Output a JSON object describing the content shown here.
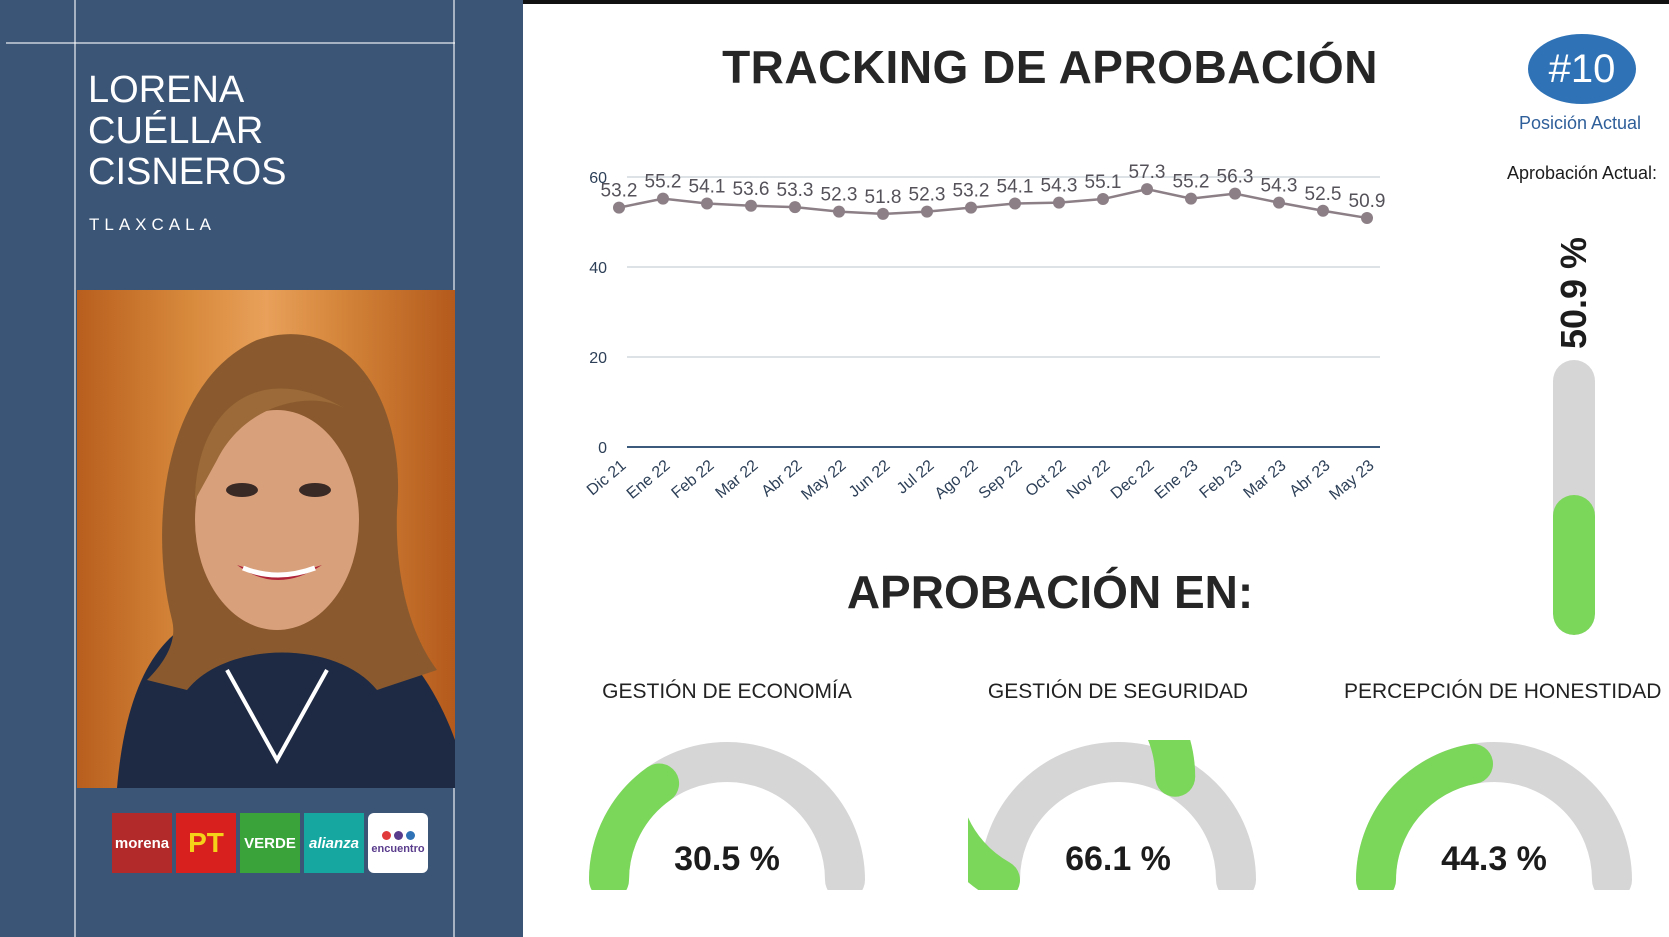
{
  "candidate": {
    "name_lines": [
      "LORENA",
      "CUÉLLAR",
      "CISNEROS"
    ],
    "state": "TLAXCALA"
  },
  "party_logos": [
    {
      "name": "morena",
      "text": "morena",
      "color": "#b22a2a"
    },
    {
      "name": "pt",
      "text": "PT",
      "color": "#d8201e"
    },
    {
      "name": "verde",
      "text": "VERDE",
      "color": "#3aa43a"
    },
    {
      "name": "alianza",
      "text": "alianza",
      "color": "#16a8a0"
    },
    {
      "name": "encuentro",
      "text": "encuentro",
      "color": "#ffffff"
    }
  ],
  "header": {
    "title": "TRACKING DE APROBACIÓN",
    "rank": "#10",
    "rank_label": "Posición Actual",
    "approval_label": "Aprobación Actual:",
    "approval_value": "50.9 %",
    "approval_fraction": 0.509
  },
  "section_title": "APROBACIÓN EN:",
  "gauges": [
    {
      "label": "GESTIÓN DE ECONOMÍA",
      "display": "30.5 %",
      "value": 30.5
    },
    {
      "label": "GESTIÓN DE SEGURIDAD",
      "display": "66.1 %",
      "value": 66.1
    },
    {
      "label": "PERCEPCIÓN DE HONESTIDAD",
      "display": "44.3 %",
      "value": 44.3
    }
  ],
  "colors": {
    "sidebar": "#3b5577",
    "accent_blue": "#2f73b6",
    "gauge_fill": "#7bd75a",
    "gauge_track": "#d6d6d6",
    "line": "#8c7f86"
  },
  "chart_data": {
    "type": "line",
    "title": "TRACKING DE APROBACIÓN",
    "xlabel": "",
    "ylabel": "",
    "categories": [
      "Dic 21",
      "Ene 22",
      "Feb 22",
      "Mar 22",
      "Abr 22",
      "May 22",
      "Jun 22",
      "Jul 22",
      "Ago 22",
      "Sep 22",
      "Oct 22",
      "Nov 22",
      "Dec 22",
      "Ene 23",
      "Feb 23",
      "Mar 23",
      "Abr 23",
      "May 23"
    ],
    "values": [
      53.2,
      55.2,
      54.1,
      53.6,
      53.3,
      52.3,
      51.8,
      52.3,
      53.2,
      54.1,
      54.3,
      55.1,
      57.3,
      55.2,
      56.3,
      54.3,
      52.5,
      50.9
    ],
    "labels": [
      "53.2",
      "55.2",
      "54.1",
      "53.6",
      "53.3",
      "52.3",
      "51.8",
      "52.3",
      "53.2",
      "54.1",
      "54.3",
      "55.1",
      "57.3",
      "55.2",
      "56.3",
      "54.3",
      "52.5",
      "50.9"
    ],
    "yticks": [
      "0",
      "20",
      "40",
      "60"
    ],
    "ylim": [
      0,
      60
    ],
    "grid": true,
    "legend": "none"
  }
}
